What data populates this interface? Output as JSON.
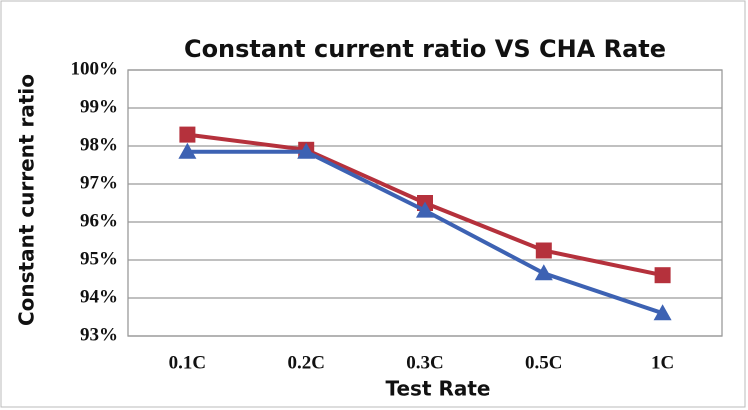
{
  "chart_data": {
    "type": "line",
    "title": "Constant current  ratio VS CHA Rate",
    "x_label": "Test Rate",
    "y_label": "Constant current ratio",
    "categories": [
      "0.1C",
      "0.2C",
      "0.3C",
      "0.5C",
      "1C"
    ],
    "series": [
      {
        "color": "#b5313c",
        "marker": "square",
        "values": [
          98.3,
          97.9,
          96.5,
          95.25,
          94.6
        ]
      },
      {
        "color": "#3d62b3",
        "marker": "triangle",
        "values": [
          97.85,
          97.85,
          96.3,
          94.65,
          93.6
        ]
      }
    ],
    "ylim": [
      93,
      100
    ],
    "yticks": [
      {
        "value": 93,
        "label": "93%"
      },
      {
        "value": 94,
        "label": "94%"
      },
      {
        "value": 95,
        "label": "95%"
      },
      {
        "value": 96,
        "label": "96%"
      },
      {
        "value": 97,
        "label": "97%"
      },
      {
        "value": 98,
        "label": "98%"
      },
      {
        "value": 99,
        "label": "99%"
      },
      {
        "value": 100,
        "label": "100%"
      }
    ],
    "grid": true
  }
}
